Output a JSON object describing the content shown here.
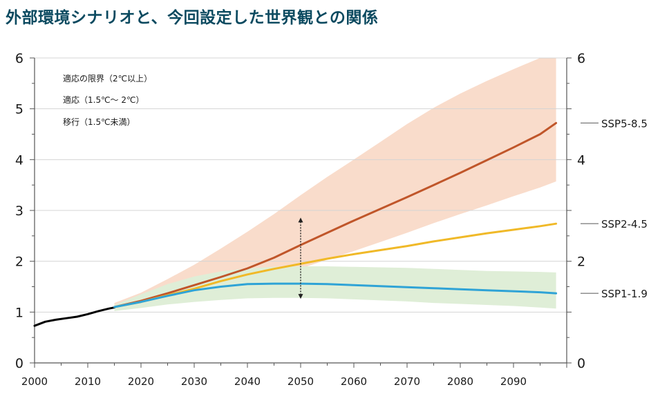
{
  "title": "外部環境シナリオと、今回設定した世界観との関係",
  "chart_data": {
    "type": "line",
    "title": "外部環境シナリオと、今回設定した世界観との関係",
    "xlabel": "",
    "ylabel": "",
    "xlim": [
      2000,
      2100
    ],
    "ylim": [
      0,
      6
    ],
    "x_ticks": [
      2000,
      2010,
      2020,
      2030,
      2040,
      2050,
      2060,
      2070,
      2080,
      2090
    ],
    "y_ticks": [
      0,
      1,
      2,
      3,
      4,
      5,
      6
    ],
    "grid": "horizontal",
    "legend_items": [
      "適応の限界（2℃以上）",
      "適応（1.5℃～ 2℃）",
      "移行（1.5℃未満）"
    ],
    "legend_position": "top-left",
    "series": [
      {
        "name": "",
        "color": "#000000",
        "x": [
          2000,
          2002,
          2004,
          2006,
          2008,
          2010,
          2012,
          2014,
          2015
        ],
        "values": [
          0.73,
          0.81,
          0.85,
          0.88,
          0.91,
          0.96,
          1.02,
          1.07,
          1.09
        ]
      },
      {
        "name": "SSP5-8.5",
        "color": "#c0562a",
        "band_color": "#f9dccb",
        "x": [
          2015,
          2020,
          2025,
          2030,
          2035,
          2040,
          2045,
          2050,
          2055,
          2060,
          2065,
          2070,
          2075,
          2080,
          2085,
          2090,
          2095,
          2098
        ],
        "values": [
          1.1,
          1.22,
          1.37,
          1.53,
          1.69,
          1.86,
          2.07,
          2.32,
          2.56,
          2.8,
          3.03,
          3.26,
          3.5,
          3.74,
          3.99,
          4.24,
          4.5,
          4.72
        ],
        "lower": [
          1.05,
          1.12,
          1.22,
          1.32,
          1.43,
          1.55,
          1.7,
          1.86,
          2.03,
          2.2,
          2.38,
          2.56,
          2.75,
          2.93,
          3.1,
          3.28,
          3.45,
          3.57
        ],
        "upper": [
          1.18,
          1.38,
          1.65,
          1.93,
          2.25,
          2.58,
          2.93,
          3.3,
          3.66,
          4.0,
          4.35,
          4.7,
          5.02,
          5.3,
          5.55,
          5.78,
          6.0,
          6.0
        ]
      },
      {
        "name": "SSP2-4.5",
        "color": "#f0b928",
        "x": [
          2015,
          2020,
          2025,
          2030,
          2035,
          2040,
          2045,
          2050,
          2055,
          2060,
          2065,
          2070,
          2075,
          2080,
          2085,
          2090,
          2095,
          2098
        ],
        "values": [
          1.1,
          1.2,
          1.33,
          1.46,
          1.61,
          1.74,
          1.85,
          1.95,
          2.05,
          2.14,
          2.22,
          2.3,
          2.39,
          2.47,
          2.55,
          2.62,
          2.69,
          2.74
        ]
      },
      {
        "name": "SSP1-1.9",
        "color": "#2fa3d6",
        "band_color": "#dfeed7",
        "x": [
          2015,
          2020,
          2025,
          2030,
          2035,
          2040,
          2045,
          2050,
          2055,
          2060,
          2065,
          2070,
          2075,
          2080,
          2085,
          2090,
          2095,
          2098
        ],
        "values": [
          1.1,
          1.2,
          1.32,
          1.43,
          1.5,
          1.55,
          1.56,
          1.56,
          1.55,
          1.53,
          1.51,
          1.49,
          1.47,
          1.45,
          1.43,
          1.41,
          1.39,
          1.37
        ],
        "lower": [
          1.02,
          1.08,
          1.15,
          1.2,
          1.24,
          1.27,
          1.28,
          1.28,
          1.27,
          1.25,
          1.23,
          1.21,
          1.18,
          1.16,
          1.14,
          1.12,
          1.09,
          1.07
        ],
        "upper": [
          1.14,
          1.35,
          1.55,
          1.7,
          1.8,
          1.86,
          1.89,
          1.9,
          1.9,
          1.89,
          1.88,
          1.87,
          1.85,
          1.83,
          1.81,
          1.8,
          1.79,
          1.78
        ]
      }
    ],
    "annotation": {
      "type": "double-arrow",
      "x": 2050,
      "y_from": 1.26,
      "y_to": 2.86
    }
  }
}
